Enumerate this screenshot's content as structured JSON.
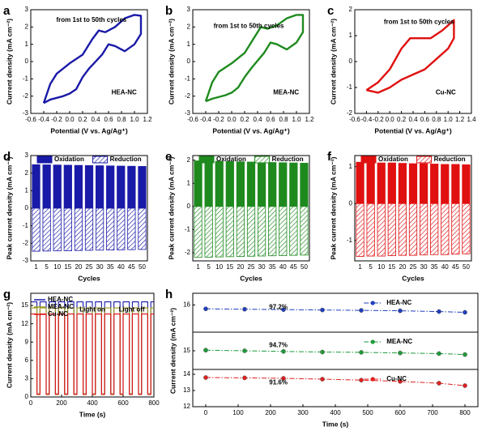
{
  "chart_data": [
    {
      "type": "line",
      "panel_label": "a",
      "xlabel": "Potential (V vs. Ag/Ag⁺)",
      "ylabel": "Current density (mA cm⁻²)",
      "annotations": [
        "from 1st to 50th cycles",
        "HEA-NC"
      ],
      "x": [
        -0.4,
        -0.3,
        -0.2,
        0,
        0.2,
        0.35,
        0.45,
        0.55,
        0.7,
        0.85,
        1.0,
        1.1,
        1.1,
        1.0,
        0.85,
        0.7,
        0.6,
        0.5,
        0.3,
        0.2,
        0.1,
        0,
        -0.1,
        -0.2,
        -0.3,
        -0.4
      ],
      "series": [
        {
          "color": "#1a1aa8",
          "values": [
            -2.4,
            -1.3,
            -0.7,
            -0.1,
            0.4,
            1.3,
            1.8,
            1.7,
            2.0,
            2.5,
            2.7,
            2.65,
            1.6,
            1.0,
            0.6,
            0.9,
            1.0,
            0.4,
            -0.4,
            -0.9,
            -1.6,
            -1.85,
            -2.0,
            -2.1,
            -2.2,
            -2.4
          ]
        }
      ],
      "xlim": [
        -0.6,
        1.2
      ],
      "xticks": [
        -0.6,
        -0.4,
        -0.2,
        {
          "value": 0,
          "label": "0.0"
        },
        0.2,
        0.4,
        0.6,
        0.8,
        {
          "value": 1,
          "label": "1.0"
        },
        1.2
      ],
      "ylim": [
        -3,
        3
      ],
      "yticks": [
        -3,
        -2,
        -1,
        0,
        1,
        2,
        3
      ]
    },
    {
      "type": "line",
      "panel_label": "b",
      "xlabel": "Potential (V vs. Ag/Ag⁺)",
      "ylabel": "Current density (mA cm⁻²)",
      "annotations": [
        "from 1st to 50th cycles",
        "MEA-NC"
      ],
      "x": [
        -0.4,
        -0.3,
        -0.2,
        0,
        0.2,
        0.35,
        0.45,
        0.55,
        0.7,
        0.85,
        1.0,
        1.1,
        1.1,
        1.0,
        0.85,
        0.7,
        0.6,
        0.5,
        0.3,
        0.2,
        0.1,
        0,
        -0.1,
        -0.2,
        -0.3,
        -0.4
      ],
      "series": [
        {
          "color": "#1e8a1e",
          "values": [
            -2.3,
            -1.2,
            -0.6,
            -0.1,
            0.5,
            1.4,
            2.0,
            1.9,
            2.1,
            2.5,
            2.7,
            2.7,
            1.7,
            1.1,
            0.7,
            1.0,
            1.1,
            0.5,
            -0.4,
            -0.9,
            -1.5,
            -1.8,
            -1.95,
            -2.05,
            -2.15,
            -2.3
          ]
        }
      ],
      "xlim": [
        -0.6,
        1.2
      ],
      "xticks": [
        -0.6,
        -0.4,
        -0.2,
        {
          "value": 0,
          "label": "0.0"
        },
        0.2,
        0.4,
        0.6,
        0.8,
        {
          "value": 1,
          "label": "1.0"
        },
        1.2
      ],
      "ylim": [
        -3,
        3
      ],
      "yticks": [
        -3,
        -2,
        -1,
        0,
        1,
        2,
        3
      ]
    },
    {
      "type": "line",
      "panel_label": "c",
      "xlabel": "Potential (V vs. Ag/Ag⁺)",
      "ylabel": "Current density (mA cm⁻²)",
      "annotations": [
        "from 1st to 50th cycles",
        "Cu-NC"
      ],
      "x": [
        -0.4,
        -0.2,
        0,
        0.2,
        0.35,
        0.5,
        0.7,
        0.9,
        1.05,
        1.1,
        1.1,
        1.0,
        0.8,
        0.6,
        0.4,
        0.2,
        0,
        -0.2,
        -0.4
      ],
      "series": [
        {
          "color": "#e01010",
          "values": [
            -1.1,
            -0.8,
            -0.3,
            0.5,
            0.9,
            0.9,
            0.9,
            1.2,
            1.5,
            1.6,
            0.9,
            0.5,
            0.1,
            -0.3,
            -0.5,
            -0.7,
            -1.0,
            -1.2,
            -1.1
          ]
        }
      ],
      "xlim": [
        -0.6,
        1.4
      ],
      "xticks": [
        -0.6,
        -0.4,
        -0.2,
        {
          "value": 0,
          "label": "0.0"
        },
        0.2,
        0.4,
        0.6,
        0.8,
        {
          "value": 1,
          "label": "1.0"
        },
        1.2,
        1.4
      ],
      "ylim": [
        -2,
        2
      ],
      "yticks": [
        -2,
        -1,
        0,
        1,
        2
      ]
    },
    {
      "type": "bar",
      "panel_label": "d",
      "xlabel": "Cycles",
      "ylabel": "Peak current density (mA cm⁻²)",
      "legend": "top",
      "categories": [
        "1",
        "5",
        "10",
        "15",
        "20",
        "25",
        "30",
        "35",
        "40",
        "45",
        "50"
      ],
      "series": [
        {
          "name": "Oxidation",
          "color": "#1a1aa8",
          "values": [
            2.48,
            2.47,
            2.46,
            2.45,
            2.44,
            2.43,
            2.42,
            2.41,
            2.4,
            2.39,
            2.38
          ]
        },
        {
          "name": "Reduction",
          "color": "#1a1aa8",
          "hatch": true,
          "values": [
            -2.45,
            -2.44,
            -2.43,
            -2.42,
            -2.41,
            -2.4,
            -2.39,
            -2.38,
            -2.37,
            -2.36,
            -2.35
          ]
        }
      ],
      "ylim": [
        -3,
        3
      ],
      "yticks": [
        -3,
        -2,
        -1,
        0,
        1,
        2,
        3
      ]
    },
    {
      "type": "bar",
      "panel_label": "e",
      "xlabel": "Cycles",
      "ylabel": "Peak current density (mA cm⁻²)",
      "legend": "top",
      "categories": [
        "1",
        "5",
        "10",
        "15",
        "20",
        "25",
        "30",
        "35",
        "40",
        "45",
        "50"
      ],
      "series": [
        {
          "name": "Oxidation",
          "color": "#1e8a1e",
          "values": [
            1.97,
            1.96,
            1.95,
            1.94,
            1.93,
            1.92,
            1.91,
            1.9,
            1.89,
            1.88,
            1.87
          ]
        },
        {
          "name": "Reduction",
          "color": "#1e8a1e",
          "hatch": true,
          "values": [
            -2.2,
            -2.19,
            -2.18,
            -2.17,
            -2.16,
            -2.15,
            -2.14,
            -2.13,
            -2.12,
            -2.11,
            -2.1
          ]
        }
      ],
      "ylim": [
        -2.35,
        2.2
      ],
      "yticks": [
        -2,
        -1,
        0,
        1,
        2
      ]
    },
    {
      "type": "bar",
      "panel_label": "f",
      "xlabel": "Cycles",
      "ylabel": "Peak current density (mA cm⁻²)",
      "legend": "top",
      "categories": [
        "1",
        "5",
        "10",
        "15",
        "20",
        "25",
        "30",
        "35",
        "40",
        "45",
        "50"
      ],
      "series": [
        {
          "name": "Oxidation",
          "color": "#e01010",
          "values": [
            1.12,
            1.11,
            1.1,
            1.1,
            1.09,
            1.08,
            1.08,
            1.07,
            1.06,
            1.06,
            1.05
          ]
        },
        {
          "name": "Reduction",
          "color": "#e01010",
          "hatch": true,
          "values": [
            -1.43,
            -1.42,
            -1.42,
            -1.41,
            -1.4,
            -1.4,
            -1.39,
            -1.38,
            -1.38,
            -1.37,
            -1.36
          ]
        }
      ],
      "ylim": [
        -1.55,
        1.3
      ],
      "yticks": [
        -1,
        0,
        1
      ]
    },
    {
      "type": "line",
      "panel_label": "g",
      "xlabel": "Time (s)",
      "ylabel": "Current density (mA cm⁻²)",
      "legend": "upper left",
      "annotations": [
        "Light on",
        "Light off"
      ],
      "x": [
        0,
        40,
        40,
        60,
        60,
        100,
        100,
        120,
        120,
        160,
        160,
        180,
        180,
        220,
        220,
        240,
        240,
        280,
        280,
        300,
        300,
        340,
        340,
        360,
        360,
        400,
        400,
        420,
        420,
        460,
        460,
        480,
        480,
        520,
        520,
        540,
        540,
        580,
        580,
        600,
        600,
        640,
        640,
        660,
        660,
        700,
        700,
        720,
        720,
        760,
        760,
        780,
        780,
        800
      ],
      "series": [
        {
          "name": "HEA-NC",
          "color": "#1a1aa8",
          "values": [
            15.6,
            15.6,
            0.5,
            0.5,
            15.6,
            15.6,
            0.5,
            0.5,
            15.6,
            15.6,
            0.5,
            0.5,
            15.6,
            15.6,
            0.5,
            0.5,
            15.6,
            15.6,
            0.5,
            0.5,
            15.6,
            15.6,
            0.5,
            0.5,
            15.6,
            15.6,
            0.5,
            0.5,
            15.6,
            15.6,
            0.5,
            0.5,
            15.6,
            15.6,
            0.5,
            0.5,
            15.6,
            15.6,
            0.5,
            0.5,
            15.6,
            15.6,
            0.5,
            0.5,
            15.6,
            15.6,
            0.5,
            0.5,
            15.6,
            15.6,
            0.5,
            0.5,
            15.6,
            15.6
          ]
        },
        {
          "name": "MEA-NC",
          "color": "#9a9a18",
          "values": [
            14.6,
            14.6,
            0.5,
            0.5,
            14.6,
            14.6,
            0.5,
            0.5,
            14.6,
            14.6,
            0.5,
            0.5,
            14.6,
            14.6,
            0.5,
            0.5,
            14.6,
            14.6,
            0.5,
            0.5,
            14.6,
            14.6,
            0.5,
            0.5,
            14.6,
            14.6,
            0.5,
            0.5,
            14.6,
            14.6,
            0.5,
            0.5,
            14.6,
            14.6,
            0.5,
            0.5,
            14.6,
            14.6,
            0.5,
            0.5,
            14.6,
            14.6,
            0.5,
            0.5,
            14.6,
            14.6,
            0.5,
            0.5,
            14.6,
            14.6,
            0.5,
            0.5,
            14.6,
            14.6
          ]
        },
        {
          "name": "Cu-NC",
          "color": "#e01010",
          "values": [
            13.6,
            13.6,
            0.4,
            0.4,
            13.6,
            13.6,
            0.4,
            0.4,
            13.6,
            13.6,
            0.4,
            0.4,
            13.6,
            13.6,
            0.4,
            0.4,
            13.6,
            13.6,
            0.4,
            0.4,
            13.6,
            13.6,
            0.4,
            0.4,
            13.6,
            13.6,
            0.4,
            0.4,
            13.6,
            13.6,
            0.4,
            0.4,
            13.6,
            13.6,
            0.4,
            0.4,
            13.6,
            13.6,
            0.4,
            0.4,
            13.6,
            13.6,
            0.4,
            0.4,
            13.6,
            13.6,
            0.4,
            0.4,
            13.6,
            13.6,
            0.4,
            0.4,
            13.6,
            13.6
          ]
        }
      ],
      "xlim": [
        0,
        800
      ],
      "xticks": [
        0,
        200,
        400,
        600,
        800
      ],
      "ylim": [
        0,
        17
      ],
      "yticks": [
        0,
        3,
        6,
        9,
        12,
        15
      ]
    },
    {
      "type": "line",
      "panel_label": "h",
      "legend": "upper center",
      "marker": "o",
      "annotations": [
        "97.2%"
      ],
      "x": [
        0,
        120,
        240,
        360,
        480,
        600,
        720,
        800
      ],
      "series": [
        {
          "name": "HEA-NC",
          "color": "#1f3fbf",
          "linestyle": "dashdot",
          "values": [
            15.9,
            15.89,
            15.88,
            15.87,
            15.86,
            15.85,
            15.83,
            15.81
          ]
        }
      ],
      "xlim": [
        -40,
        840
      ],
      "ylim": [
        15.3,
        16.3
      ],
      "yticks": [
        16
      ]
    },
    {
      "type": "line",
      "legend": "upper center",
      "marker": "o",
      "annotations": [
        "94.7%"
      ],
      "ylabel": "Current density (mA cm⁻²)",
      "x": [
        0,
        120,
        240,
        360,
        480,
        600,
        720,
        800
      ],
      "series": [
        {
          "name": "MEA-NC",
          "color": "#1e9a3a",
          "linestyle": "dashdot",
          "values": [
            15.02,
            15.0,
            14.98,
            14.96,
            14.95,
            14.93,
            14.91,
            14.88
          ]
        }
      ],
      "xlim": [
        -40,
        840
      ],
      "ylim": [
        14.4,
        15.6
      ],
      "yticks": [
        15
      ]
    },
    {
      "type": "line",
      "legend": "upper center",
      "marker": "o",
      "annotations": [
        "91.6%"
      ],
      "xlabel": "Time (s)",
      "x": [
        0,
        120,
        240,
        360,
        480,
        600,
        720,
        800
      ],
      "series": [
        {
          "name": "Cu-NC",
          "color": "#e02020",
          "linestyle": "dashdot",
          "values": [
            13.8,
            13.78,
            13.75,
            13.7,
            13.64,
            13.56,
            13.45,
            13.3
          ]
        }
      ],
      "xlim": [
        -40,
        840
      ],
      "xticks": [
        0,
        100,
        200,
        300,
        400,
        500,
        600,
        700,
        800
      ],
      "ylim": [
        12,
        14.3
      ],
      "yticks": [
        12,
        13,
        14
      ]
    }
  ]
}
